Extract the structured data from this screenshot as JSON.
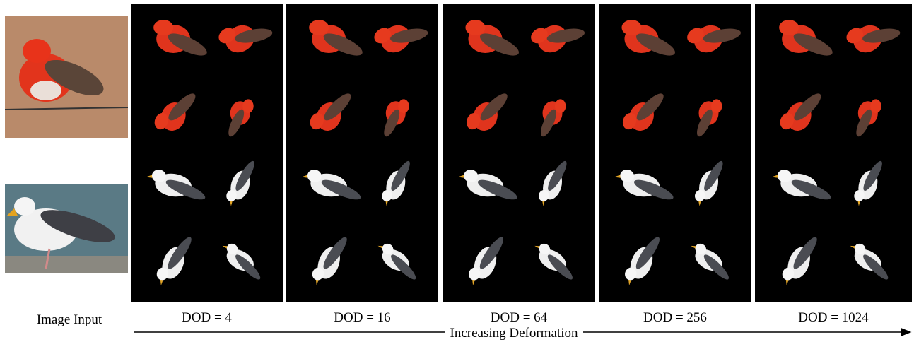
{
  "input_label": "Image Input",
  "columns": [
    "DOD = 4",
    "DOD = 16",
    "DOD = 64",
    "DOD = 256",
    "DOD = 1024"
  ],
  "axis_label": "Increasing Deformation"
}
